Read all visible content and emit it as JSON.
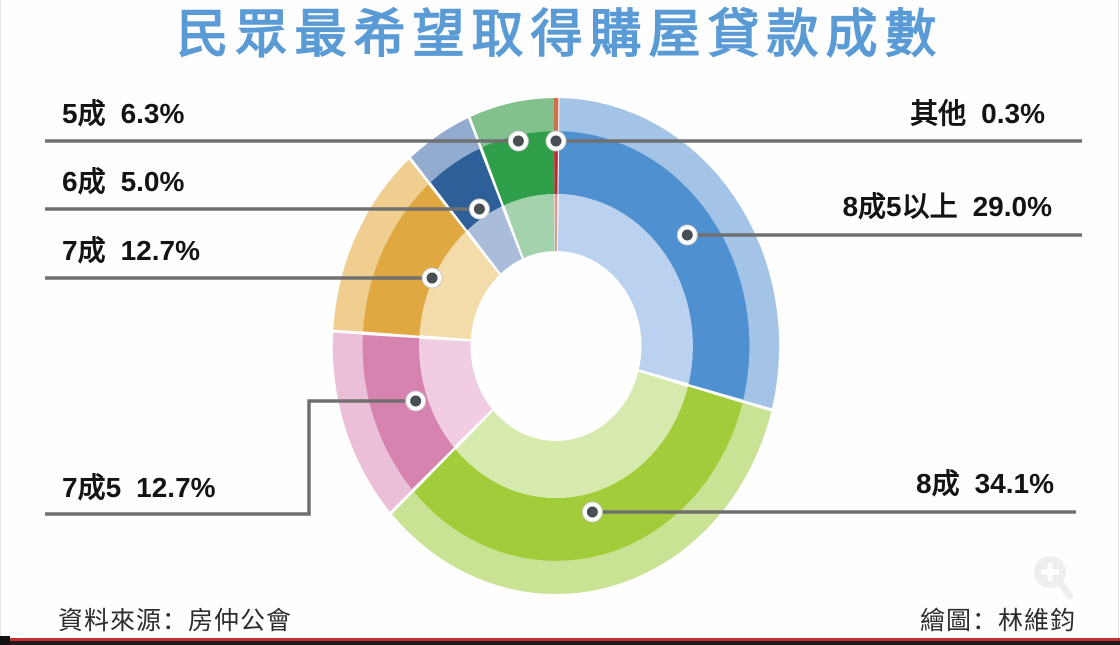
{
  "title": "民眾最希望取得購屋貸款成數",
  "footer": {
    "source": "資料來源：房仲公會",
    "credit": "繪圖：林維鈞"
  },
  "colors": {
    "title": "#5b9bd5",
    "connector": "#707070",
    "dot_fill": "#474f54",
    "label_text": "#141414",
    "bottom_red_line": "#c62f2d",
    "bottom_dark_line": "#1b1b1b"
  },
  "watermark": {
    "icon": "zoom-in-magnifier"
  },
  "chart_data": {
    "type": "pie",
    "variant": "donut-three-band",
    "title": "民眾最希望取得購屋貸款成數",
    "units": "%",
    "clockwise": true,
    "start_angle_deg": -0.54,
    "source": "資料來源：房仲公會",
    "credit": "繪圖：林維鈞",
    "segments": [
      {
        "label": "其他",
        "value": 0.3,
        "display_value": "0.3%",
        "color": "#c1282d",
        "color_outer": "#cf6f4e",
        "color_inner": "#dc9a93"
      },
      {
        "label": "8成5以上",
        "value": 29.0,
        "display_value": "29.0%",
        "color": "#4f90d1",
        "color_outer": "#a3c3e7",
        "color_inner": "#bad1ef"
      },
      {
        "label": "8成",
        "value": 34.1,
        "display_value": "34.1%",
        "color": "#a3cc3a",
        "color_outer": "#c9e294",
        "color_inner": "#d7eaae"
      },
      {
        "label": "7成5",
        "value": 12.7,
        "display_value": "12.7%",
        "color": "#d783b0",
        "color_outer": "#ecbfd8",
        "color_inner": "#f0cde1"
      },
      {
        "label": "7成",
        "value": 12.7,
        "display_value": "12.7%",
        "color": "#e0a840",
        "color_outer": "#efce90",
        "color_inner": "#f3dbaa"
      },
      {
        "label": "6成",
        "value": 5.0,
        "display_value": "5.0%",
        "color": "#2d5f98",
        "color_outer": "#92abce",
        "color_inner": "#a9bcd9"
      },
      {
        "label": "5成",
        "value": 6.3,
        "display_value": "6.3%",
        "color": "#2f9f4a",
        "color_outer": "#82c08d",
        "color_inner": "#a3d2ad"
      }
    ]
  }
}
